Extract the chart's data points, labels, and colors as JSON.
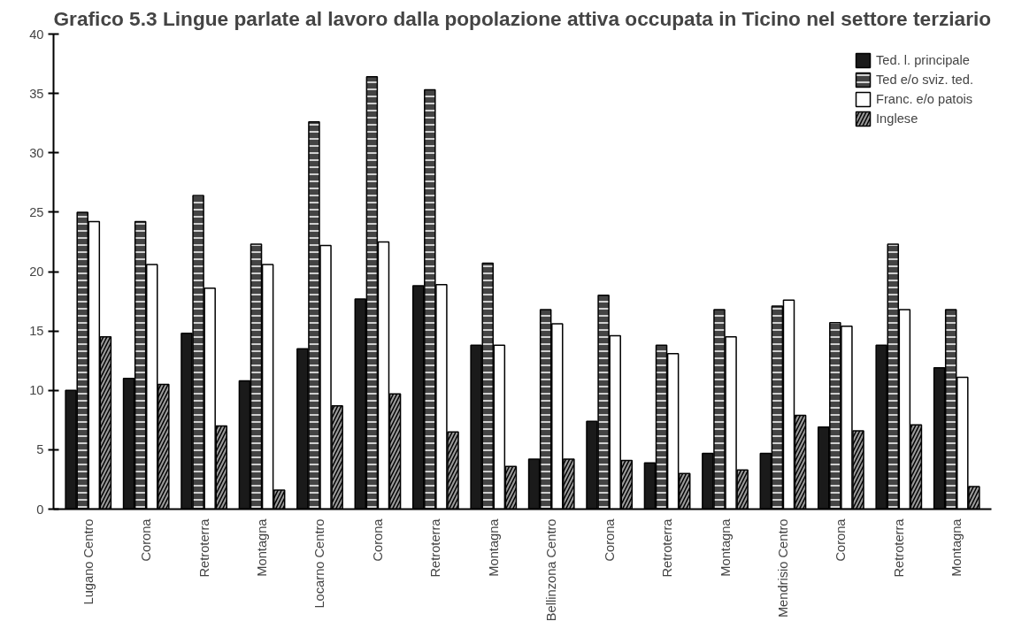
{
  "chart_data": {
    "type": "bar",
    "title": "Grafico 5.3    Lingue parlate al lavoro dalla popolazione attiva occupata in Ticino nel settore terziario",
    "categories": [
      "Lugano Centro",
      "Corona",
      "Retroterra",
      "Montagna",
      "Locarno Centro",
      "Corona",
      "Retroterra",
      "Montagna",
      "Bellinzona Centro",
      "Corona",
      "Retroterra",
      "Montagna",
      "Mendrisio Centro",
      "Corona",
      "Retroterra",
      "Montagna"
    ],
    "series": [
      {
        "name": "Ted. l. principale",
        "color": "#1a1a1a",
        "values": [
          10,
          11,
          14.8,
          10.8,
          13.5,
          17.7,
          18.8,
          13.8,
          4.2,
          7.4,
          3.9,
          4.7,
          4.7,
          6.9,
          13.8,
          11.9
        ]
      },
      {
        "name": "Ted e/o sviz. ted.",
        "color": "#444444",
        "values": [
          25,
          24.2,
          26.4,
          22.3,
          32.6,
          36.4,
          35.3,
          20.7,
          16.8,
          18,
          13.8,
          16.8,
          17.1,
          15.7,
          22.3,
          16.8
        ]
      },
      {
        "name": "Franc. e/o patois",
        "color": "#ffffff",
        "values": [
          24.2,
          20.6,
          18.6,
          20.6,
          22.2,
          22.5,
          18.9,
          13.8,
          15.6,
          14.6,
          13.1,
          14.5,
          17.6,
          15.4,
          16.8,
          11.1
        ]
      },
      {
        "name": "Inglese",
        "color": "#9a9a9a",
        "values": [
          14.5,
          10.5,
          7,
          1.6,
          8.7,
          9.7,
          6.5,
          3.6,
          4.2,
          4.1,
          3,
          3.3,
          7.9,
          6.6,
          7.1,
          1.9
        ]
      }
    ],
    "ylim": [
      0,
      40
    ],
    "yticks": [
      0,
      5,
      10,
      15,
      20,
      25,
      30,
      35,
      40
    ],
    "grid": false,
    "legend": "top right"
  }
}
